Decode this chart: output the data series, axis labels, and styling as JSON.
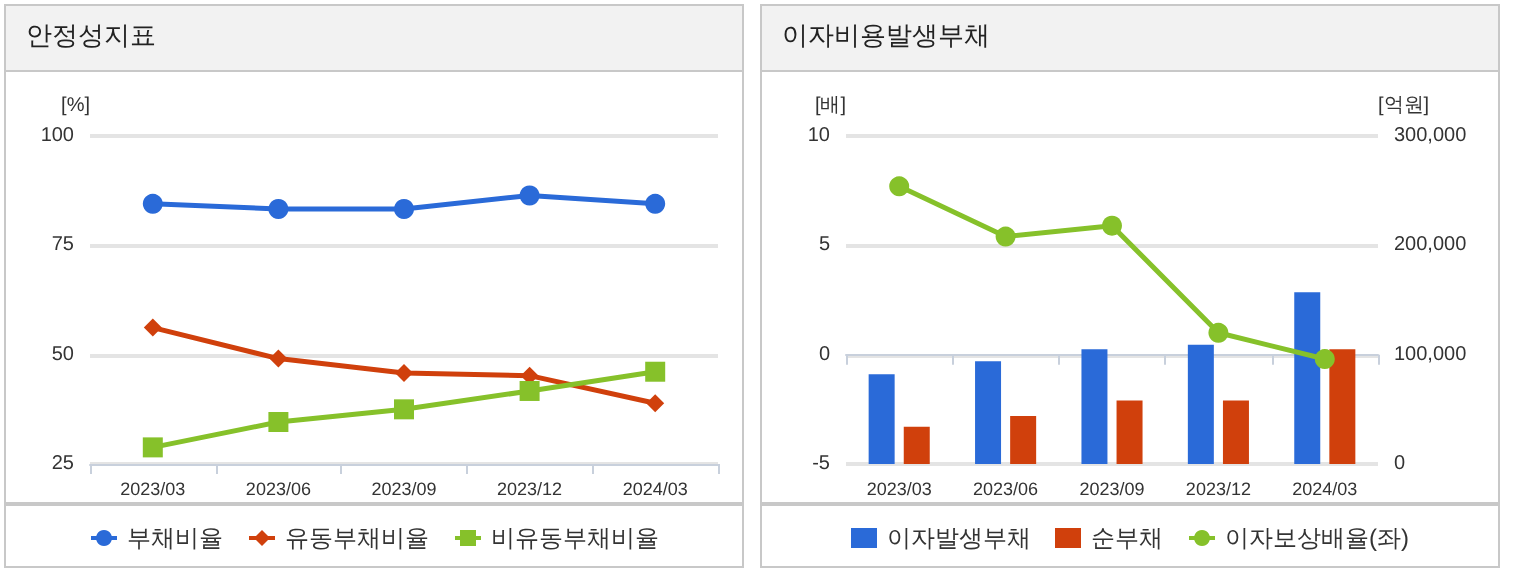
{
  "chart_data": [
    {
      "type": "line",
      "title": "안정성지표",
      "ylabel": "[%]",
      "categories": [
        "2023/03",
        "2023/06",
        "2023/09",
        "2023/12",
        "2024/03"
      ],
      "ylim": [
        25,
        100
      ],
      "yticks": [
        25,
        50,
        75,
        100
      ],
      "grid": "y",
      "legend": "bottom",
      "series": [
        {
          "name": "부채비율",
          "color": "#2a6ad8",
          "marker": "circle",
          "values": [
            84.5,
            83.3,
            83.3,
            86.4,
            84.5
          ]
        },
        {
          "name": "유동부채비율",
          "color": "#d0400c",
          "marker": "diamond",
          "values": [
            56.2,
            49.1,
            45.8,
            45.2,
            38.9
          ]
        },
        {
          "name": "비유동부채비율",
          "color": "#86c12a",
          "marker": "square",
          "values": [
            28.8,
            34.6,
            37.5,
            41.7,
            46.1
          ]
        }
      ]
    },
    {
      "type": "bar",
      "title": "이자비용발생부채",
      "ylabel": "[배]",
      "y2label": "[억원]",
      "categories": [
        "2023/03",
        "2023/06",
        "2023/09",
        "2023/12",
        "2024/03"
      ],
      "ylim": [
        -5,
        10
      ],
      "yticks": [
        -5,
        0,
        5,
        10
      ],
      "y2lim": [
        0,
        300000
      ],
      "y2ticks": [
        0,
        {
          "value": 100000,
          "label": "100,000"
        },
        {
          "value": 200000,
          "label": "200,000"
        },
        {
          "value": 300000,
          "label": "300,000"
        }
      ],
      "grid": "y",
      "legend": "bottom",
      "series": [
        {
          "name": "이자발생부채",
          "color": "#2a6ad8",
          "axis": "y2",
          "values": [
            82000,
            94000,
            105000,
            109000,
            157000
          ]
        },
        {
          "name": "순부채",
          "color": "#d0400c",
          "axis": "y2",
          "values": [
            34000,
            44000,
            58000,
            58000,
            105000
          ]
        },
        {
          "name": "이자보상배율(좌)",
          "type": "line",
          "color": "#86c12a",
          "marker": "circle",
          "axis": "y",
          "values": [
            7.7,
            5.4,
            5.9,
            1.0,
            -0.2
          ]
        }
      ]
    }
  ]
}
